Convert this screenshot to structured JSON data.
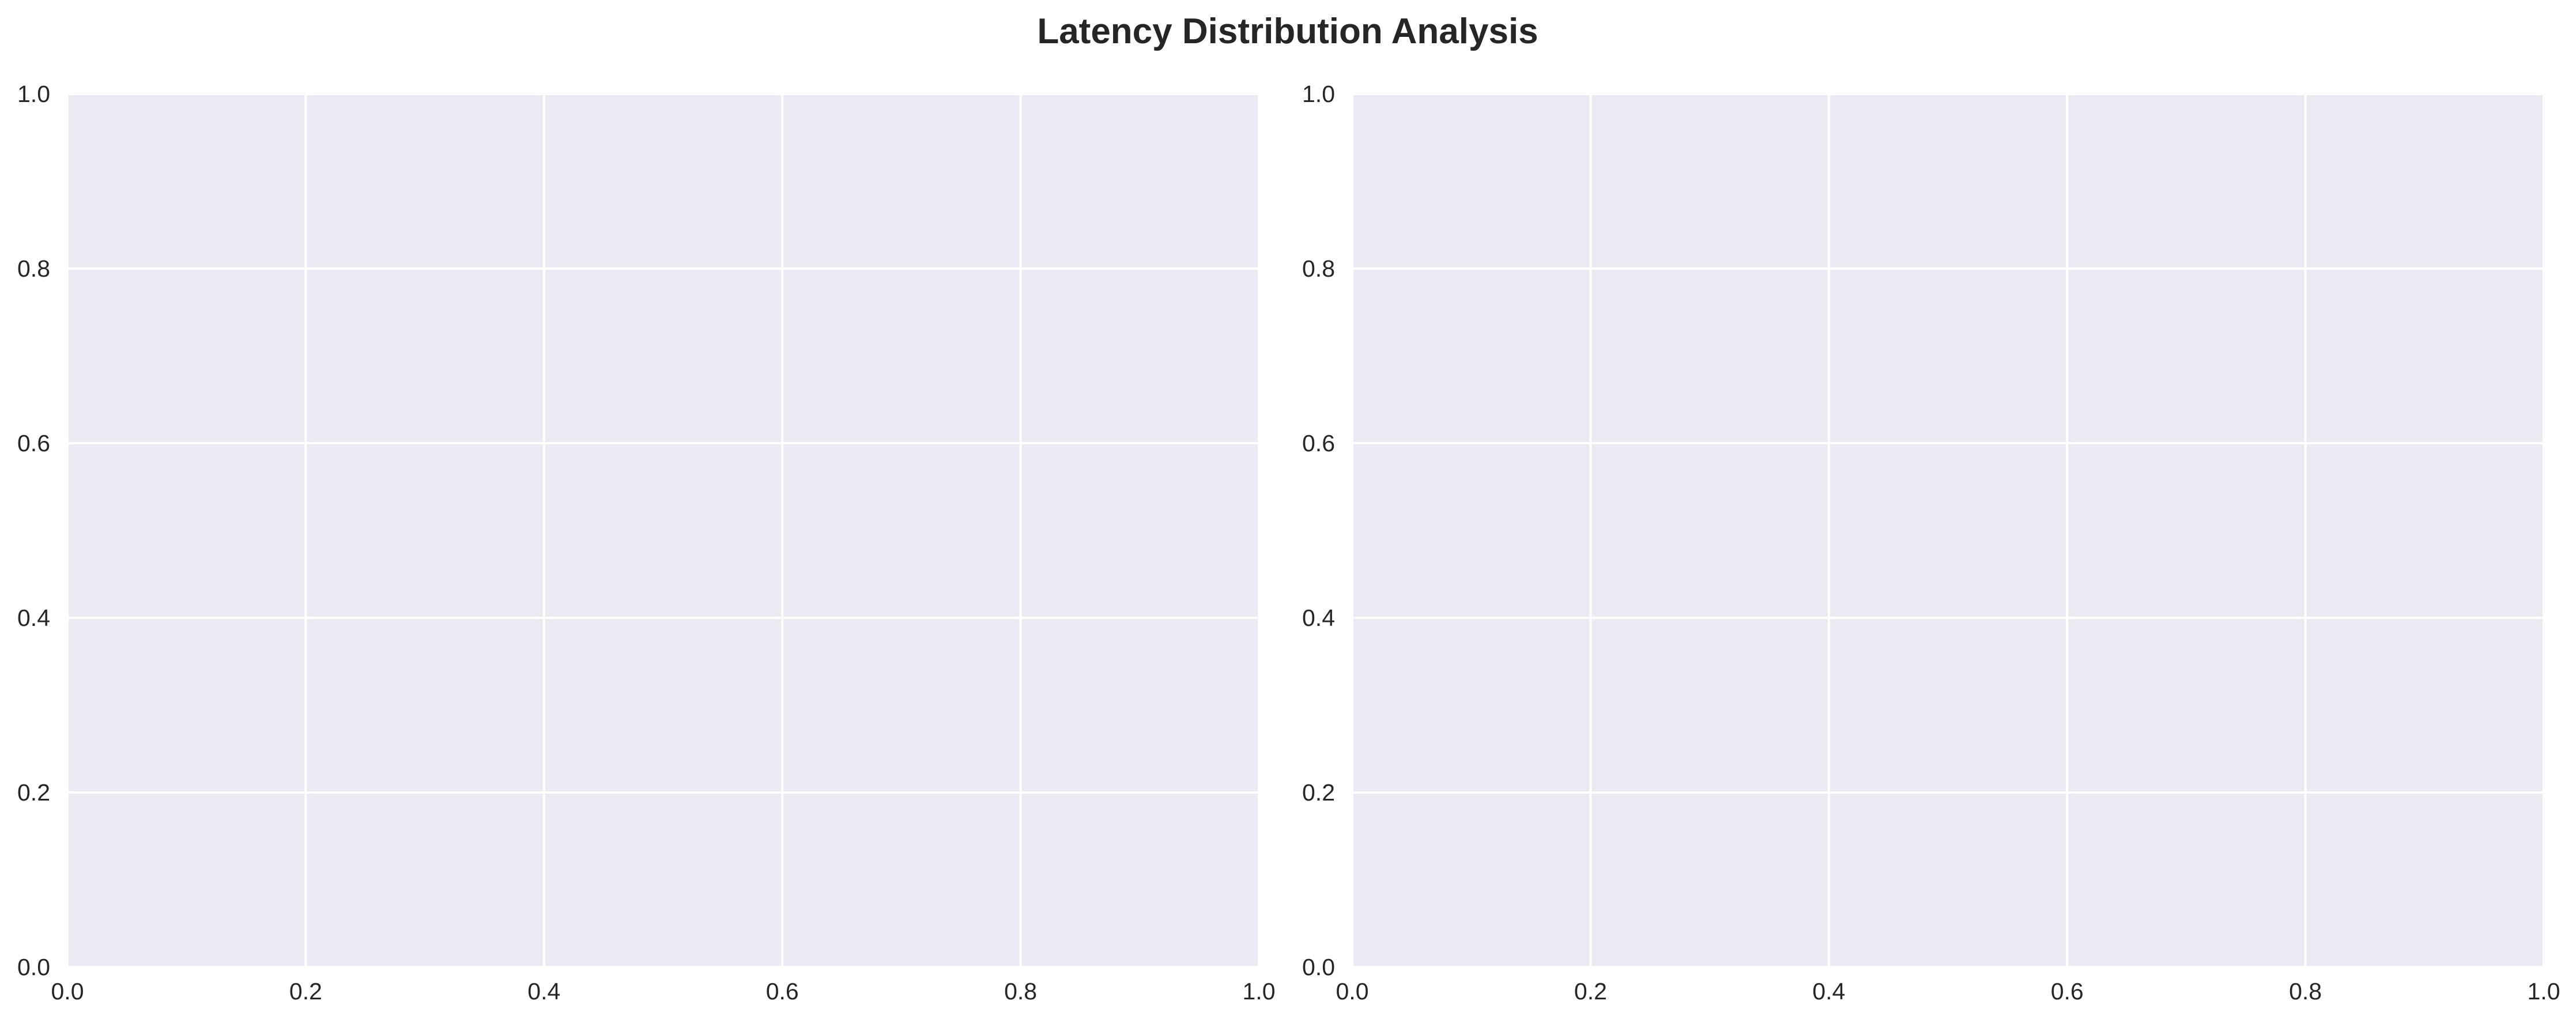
{
  "figure": {
    "title": "Latency Distribution Analysis",
    "background": "#ffffff"
  },
  "style": {
    "axes_facecolor": "#eaeaf2",
    "grid_color": "#ffffff",
    "text_color": "#262626"
  },
  "chart_data": [
    {
      "type": "line",
      "title": "",
      "xlabel": "",
      "ylabel": "",
      "xlim": [
        0,
        1
      ],
      "ylim": [
        0,
        1
      ],
      "x_ticks": [
        0.0,
        0.2,
        0.4,
        0.6,
        0.8,
        1.0
      ],
      "y_ticks": [
        0.0,
        0.2,
        0.4,
        0.6,
        0.8,
        1.0
      ],
      "x_tick_labels": [
        "0.0",
        "0.2",
        "0.4",
        "0.6",
        "0.8",
        "1.0"
      ],
      "y_tick_labels": [
        "0.0",
        "0.2",
        "0.4",
        "0.6",
        "0.8",
        "1.0"
      ],
      "grid": true,
      "series": []
    },
    {
      "type": "line",
      "title": "",
      "xlabel": "",
      "ylabel": "",
      "xlim": [
        0,
        1
      ],
      "ylim": [
        0,
        1
      ],
      "x_ticks": [
        0.0,
        0.2,
        0.4,
        0.6,
        0.8,
        1.0
      ],
      "y_ticks": [
        0.0,
        0.2,
        0.4,
        0.6,
        0.8,
        1.0
      ],
      "x_tick_labels": [
        "0.0",
        "0.2",
        "0.4",
        "0.6",
        "0.8",
        "1.0"
      ],
      "y_tick_labels": [
        "0.0",
        "0.2",
        "0.4",
        "0.6",
        "0.8",
        "1.0"
      ],
      "grid": true,
      "series": []
    }
  ]
}
